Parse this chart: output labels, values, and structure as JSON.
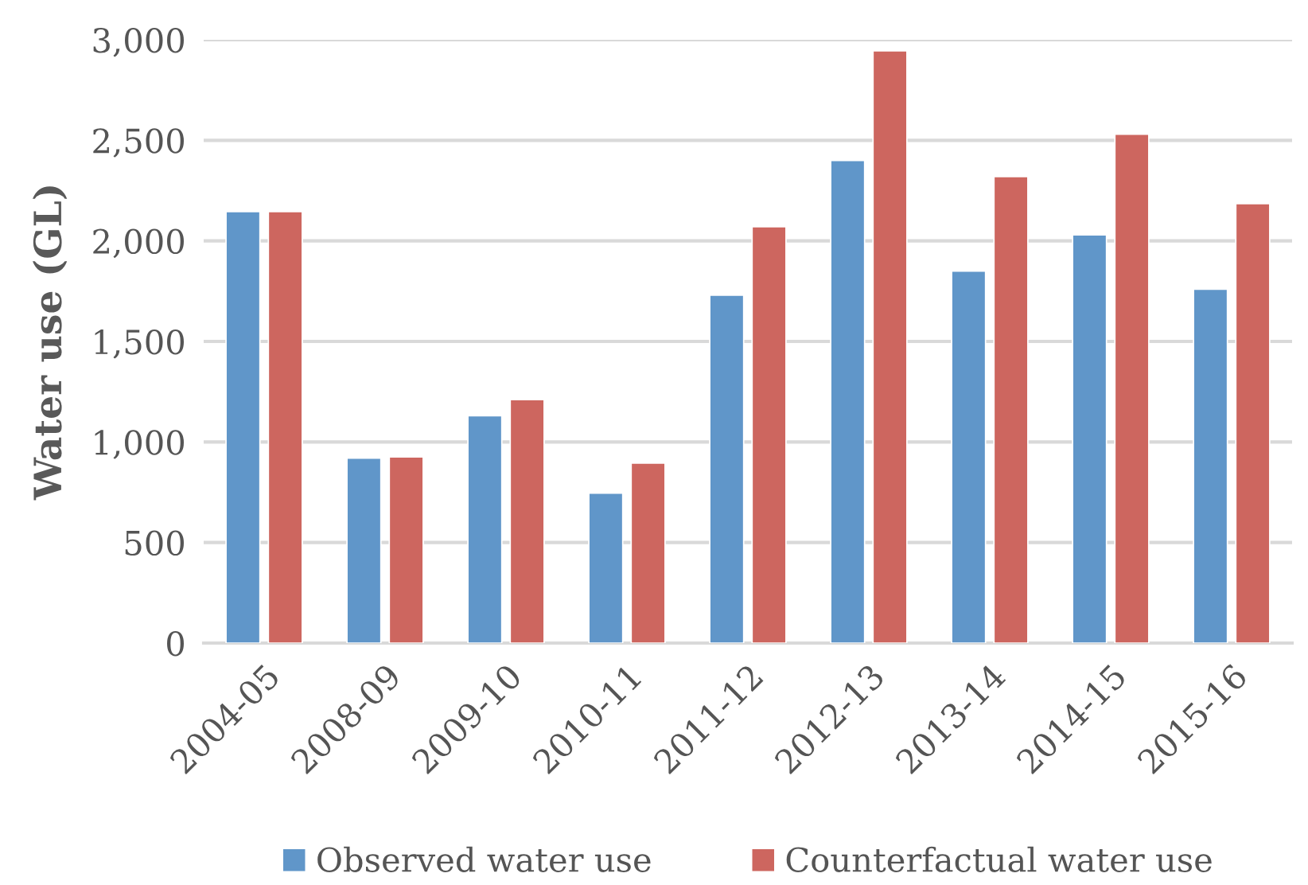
{
  "chart_data": {
    "type": "bar",
    "ylabel": "Water use (GL)",
    "categories": [
      "2004-05",
      "2008-09",
      "2009-10",
      "2010-11",
      "2011-12",
      "2012-13",
      "2013-14",
      "2014-15",
      "2015-16"
    ],
    "series": [
      {
        "name": "Observed water use",
        "color": "#6096c9",
        "values": [
          2145,
          920,
          1130,
          745,
          1730,
          2400,
          1850,
          2030,
          1760
        ]
      },
      {
        "name": "Counterfactual water use",
        "color": "#cd665f",
        "values": [
          2145,
          925,
          1210,
          895,
          2070,
          2945,
          2320,
          2530,
          2185
        ]
      }
    ],
    "ylim": [
      0,
      3000
    ],
    "yticks": [
      {
        "value": 0,
        "label": "0"
      },
      {
        "value": 500,
        "label": "500"
      },
      {
        "value": 1000,
        "label": "1,000"
      },
      {
        "value": 1500,
        "label": "1,500"
      },
      {
        "value": 2000,
        "label": "2,000"
      },
      {
        "value": 2500,
        "label": "2,500"
      },
      {
        "value": 3000,
        "label": "3,000"
      }
    ],
    "grid": "y",
    "legend": "bottom"
  }
}
